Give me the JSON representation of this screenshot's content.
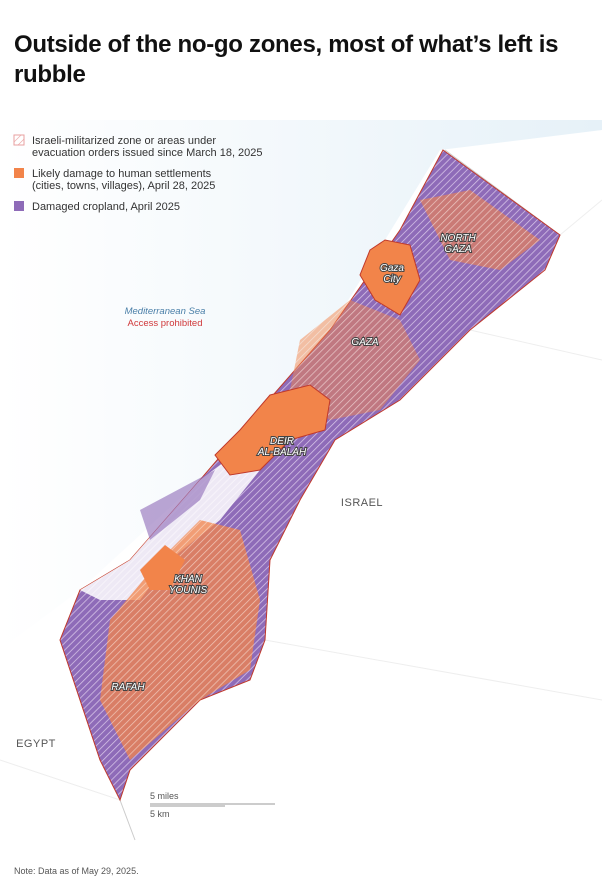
{
  "header": {
    "title": "Outside of the no-go zones, most of what’s left is rubble"
  },
  "legend": [
    {
      "lines": [
        "Israeli-militarized zone or areas under",
        "evacuation orders issued since March 18, 2025"
      ],
      "color": "#e8a0a0"
    },
    {
      "lines": [
        "Likely damage to human settlements",
        "(cities, towns, villages), April 28, 2025"
      ],
      "color": "#f2844a"
    },
    {
      "lines": [
        "Damaged cropland, April 2025"
      ],
      "color": "#8e6bb8"
    }
  ],
  "sea": {
    "name": "Mediterranean Sea",
    "note": "Access prohibited"
  },
  "places": [
    {
      "lines": [
        "NORTH",
        "GAZA"
      ]
    },
    {
      "lines": [
        "Gaza",
        "City"
      ]
    },
    {
      "lines": [
        "GAZA"
      ]
    },
    {
      "lines": [
        "DEIR",
        "AL-BALAH"
      ]
    },
    {
      "lines": [
        "KHAN",
        "YOUNIS"
      ]
    },
    {
      "lines": [
        "RAFAH"
      ]
    }
  ],
  "countries": [
    "ISRAEL",
    "EGYPT"
  ],
  "scale": {
    "miles": "5 miles",
    "km": "5 km"
  },
  "note": "Note: Data as of May 29, 2025."
}
